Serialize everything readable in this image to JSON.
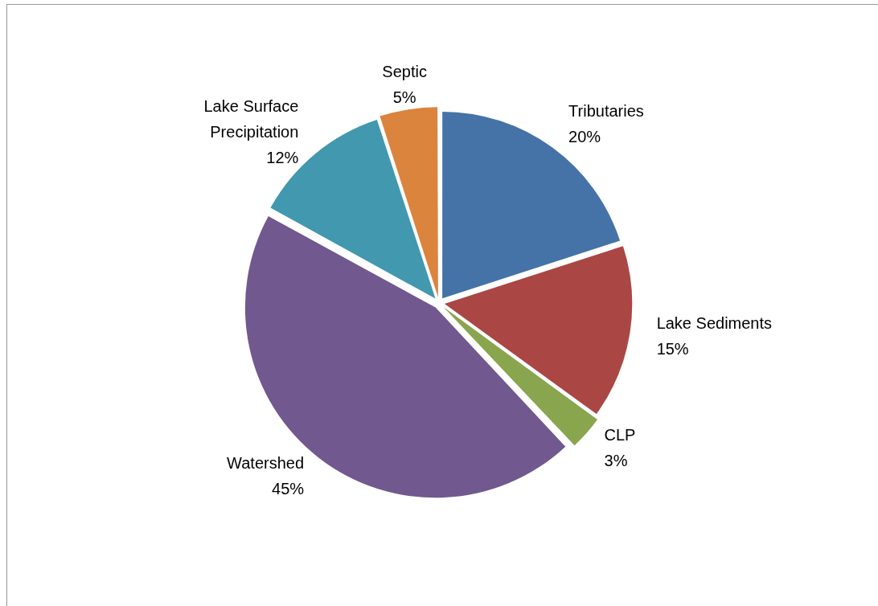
{
  "chart_data": {
    "type": "pie",
    "categories": [
      "Tributaries",
      "Lake Sediments",
      "CLP",
      "Watershed",
      "Lake Surface Precipitation",
      "Septic"
    ],
    "values": [
      20,
      15,
      3,
      45,
      12,
      5
    ],
    "value_labels": [
      "20%",
      "15%",
      "3%",
      "45%",
      "12%",
      "5%"
    ],
    "colors": [
      "#4573a7",
      "#aa4643",
      "#89a54e",
      "#71588f",
      "#4198af",
      "#db843d"
    ],
    "legend": false
  }
}
